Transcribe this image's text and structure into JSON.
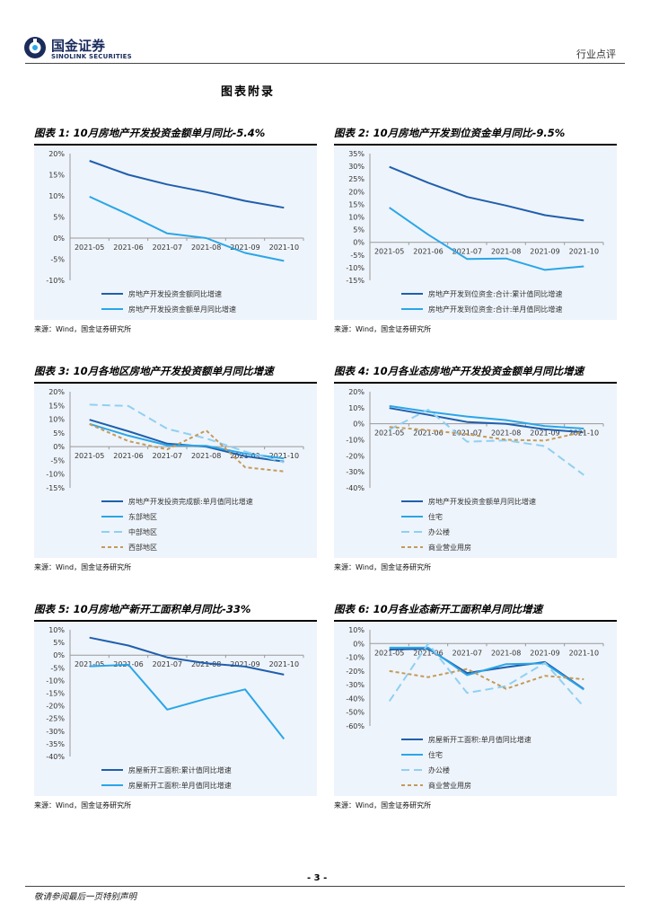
{
  "header": {
    "logo_cn": "国金证券",
    "logo_en": "SINOLINK SECURITIES",
    "category": "行业点评"
  },
  "appendix_title": "图表附录",
  "source_text": "来源：Wind，国金证券研究所",
  "footer": {
    "page_number": "- 3 -",
    "disclaimer": "敬请参阅最后一页特别声明"
  },
  "colors": {
    "dark_blue": "#1f5fad",
    "light_blue": "#2aa6e8",
    "dashed_blue": "#8fd0f2",
    "brown": "#c49a5b"
  },
  "chart_data": [
    {
      "id": "c1",
      "type": "line",
      "title": "图表 1:  10月房地产开发投资金额单月同比-5.4%",
      "categories": [
        "2021-05",
        "2021-06",
        "2021-07",
        "2021-08",
        "2021-09",
        "2021-10"
      ],
      "y_ticks": [
        "20%",
        "15%",
        "10%",
        "5%",
        "0%",
        "-5%",
        "-10%"
      ],
      "ylim": [
        -10,
        20
      ],
      "series": [
        {
          "name": "房地产开发投资金额同比增速",
          "style": "dark",
          "values": [
            18.3,
            15.0,
            12.7,
            10.9,
            8.8,
            7.2
          ]
        },
        {
          "name": "房地产开发投资金额单月同比增速",
          "style": "light",
          "values": [
            9.8,
            5.6,
            1.1,
            0.0,
            -3.5,
            -5.4
          ]
        }
      ]
    },
    {
      "id": "c2",
      "type": "line",
      "title": "图表 2:  10月房地产开发到位资金单月同比-9.5%",
      "categories": [
        "2021-05",
        "2021-06",
        "2021-07",
        "2021-08",
        "2021-09",
        "2021-10"
      ],
      "y_ticks": [
        "35%",
        "30%",
        "25%",
        "20%",
        "15%",
        "10%",
        "5%",
        "0%",
        "-5%",
        "-10%",
        "-15%"
      ],
      "ylim": [
        -15,
        35
      ],
      "series": [
        {
          "name": "房地产开发到位资金:合计:累计值同比增速",
          "style": "dark",
          "values": [
            29.8,
            23.5,
            17.9,
            14.5,
            10.7,
            8.6
          ]
        },
        {
          "name": "房地产开发到位资金:合计:单月值同比增速",
          "style": "light",
          "values": [
            13.7,
            3.0,
            -6.6,
            -6.4,
            -10.9,
            -9.5
          ]
        }
      ]
    },
    {
      "id": "c3",
      "type": "line",
      "title": "图表 3:  10月各地区房地产开发投资额单月同比增速",
      "categories": [
        "2021-05",
        "2021-06",
        "2021-07",
        "2021-08",
        "2021-09",
        "2021-10"
      ],
      "y_ticks": [
        "20%",
        "15%",
        "10%",
        "5%",
        "0%",
        "-5%",
        "-10%",
        "-15%"
      ],
      "ylim": [
        -15,
        20
      ],
      "series": [
        {
          "name": "房地产开发投资完成额:单月值同比增速",
          "style": "dark",
          "values": [
            9.8,
            5.6,
            1.1,
            0.0,
            -3.5,
            -5.4
          ]
        },
        {
          "name": "东部地区",
          "style": "light",
          "values": [
            8.3,
            4.0,
            0.5,
            0.3,
            -2.5,
            -4.3
          ]
        },
        {
          "name": "中部地区",
          "style": "dashed",
          "values": [
            15.3,
            14.8,
            6.5,
            3.0,
            -1.8,
            -5.7
          ]
        },
        {
          "name": "西部地区",
          "style": "brown",
          "values": [
            8.2,
            2.0,
            -1.0,
            5.9,
            -7.5,
            -9.0
          ]
        }
      ]
    },
    {
      "id": "c4",
      "type": "line",
      "title": "图表 4:  10月各业态房地产开发投资金额单月同比增速",
      "categories": [
        "2021-05",
        "2021-06",
        "2021-07",
        "2021-08",
        "2021-09",
        "2021-10"
      ],
      "y_ticks": [
        "20%",
        "10%",
        "0%",
        "-10%",
        "-20%",
        "-30%",
        "-40%"
      ],
      "ylim": [
        -40,
        20
      ],
      "series": [
        {
          "name": "房地产开发投资金额单月同比增速",
          "style": "dark",
          "values": [
            9.8,
            5.6,
            1.1,
            0.0,
            -3.5,
            -5.4
          ]
        },
        {
          "name": "住宅",
          "style": "light",
          "values": [
            11.1,
            7.5,
            4.5,
            2.3,
            -1.5,
            -3.0
          ]
        },
        {
          "name": "办公楼",
          "style": "dashed",
          "values": [
            -3.6,
            8.8,
            -11.2,
            -10.4,
            -14.0,
            -32.0
          ]
        },
        {
          "name": "商业营业用房",
          "style": "brown",
          "values": [
            -2.0,
            -4.0,
            -6.5,
            -10.0,
            -10.5,
            -5.0
          ]
        }
      ]
    },
    {
      "id": "c5",
      "type": "line",
      "title": "图表 5:  10月房地产新开工面积单月同比-33%",
      "categories": [
        "2021-05",
        "2021-06",
        "2021-07",
        "2021-08",
        "2021-09",
        "2021-10"
      ],
      "y_ticks": [
        "10%",
        "5%",
        "0%",
        "-5%",
        "-10%",
        "-15%",
        "-20%",
        "-25%",
        "-30%",
        "-35%",
        "-40%"
      ],
      "ylim": [
        -40,
        10
      ],
      "series": [
        {
          "name": "房屋新开工面积:累计值同比增速",
          "style": "dark",
          "values": [
            6.9,
            3.8,
            -0.9,
            -3.2,
            -4.5,
            -7.7
          ]
        },
        {
          "name": "房屋新开工面积:单月值同比增速",
          "style": "light",
          "values": [
            -4.4,
            -3.8,
            -21.5,
            -17.2,
            -13.5,
            -33.1
          ]
        }
      ]
    },
    {
      "id": "c6",
      "type": "line",
      "title": "图表 6:  10月各业态新开工面积单月同比增速",
      "categories": [
        "2021-05",
        "2021-06",
        "2021-07",
        "2021-08",
        "2021-09",
        "2021-10"
      ],
      "y_ticks": [
        "10%",
        "0%",
        "-10%",
        "-20%",
        "-30%",
        "-40%",
        "-50%",
        "-60%"
      ],
      "ylim": [
        -60,
        10
      ],
      "series": [
        {
          "name": "房屋新开工面积:单月值同比增速",
          "style": "dark",
          "values": [
            -4.4,
            -3.8,
            -21.5,
            -17.2,
            -13.5,
            -33.1
          ]
        },
        {
          "name": "住宅",
          "style": "light",
          "values": [
            -3.0,
            -3.0,
            -23.0,
            -15.0,
            -14.5,
            -33.5
          ]
        },
        {
          "name": "办公楼",
          "style": "dashed",
          "values": [
            -42.0,
            0.0,
            -36.0,
            -31.0,
            -14.0,
            -46.0
          ]
        },
        {
          "name": "商业营业用房",
          "style": "brown",
          "values": [
            -20.0,
            -24.5,
            -18.5,
            -33.0,
            -23.5,
            -26.0
          ]
        }
      ]
    }
  ]
}
